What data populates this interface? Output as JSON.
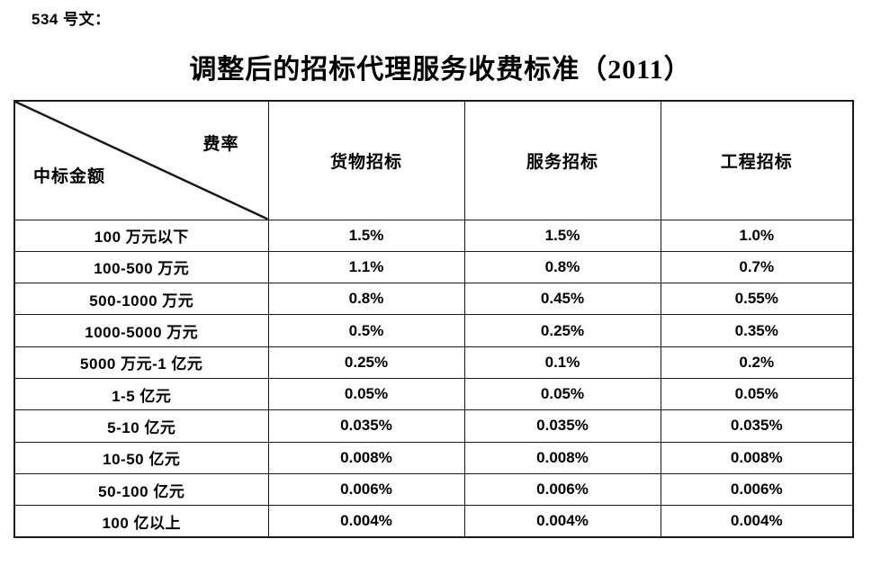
{
  "document": {
    "doc_label": "534 号文：",
    "title": "调整后的招标代理服务收费标准（2011）"
  },
  "table": {
    "corner": {
      "fee_rate_label": "费率",
      "amount_label": "中标金额"
    },
    "column_headers": [
      "货物招标",
      "服务招标",
      "工程招标"
    ],
    "rows": [
      {
        "amount": "100 万元以下",
        "values": [
          "1.5%",
          "1.5%",
          "1.0%"
        ]
      },
      {
        "amount": "100-500 万元",
        "values": [
          "1.1%",
          "0.8%",
          "0.7%"
        ]
      },
      {
        "amount": "500-1000 万元",
        "values": [
          "0.8%",
          "0.45%",
          "0.55%"
        ]
      },
      {
        "amount": "1000-5000 万元",
        "values": [
          "0.5%",
          "0.25%",
          "0.35%"
        ]
      },
      {
        "amount": "5000 万元-1 亿元",
        "values": [
          "0.25%",
          "0.1%",
          "0.2%"
        ]
      },
      {
        "amount": "1-5 亿元",
        "values": [
          "0.05%",
          "0.05%",
          "0.05%"
        ]
      },
      {
        "amount": "5-10 亿元",
        "values": [
          "0.035%",
          "0.035%",
          "0.035%"
        ]
      },
      {
        "amount": "10-50 亿元",
        "values": [
          "0.008%",
          "0.008%",
          "0.008%"
        ]
      },
      {
        "amount": "50-100 亿元",
        "values": [
          "0.006%",
          "0.006%",
          "0.006%"
        ]
      },
      {
        "amount": "100 亿以上",
        "values": [
          "0.004%",
          "0.004%",
          "0.004%"
        ]
      }
    ],
    "colors": {
      "text": "#000000",
      "border": "#1a1a1a",
      "background": "#ffffff"
    }
  }
}
